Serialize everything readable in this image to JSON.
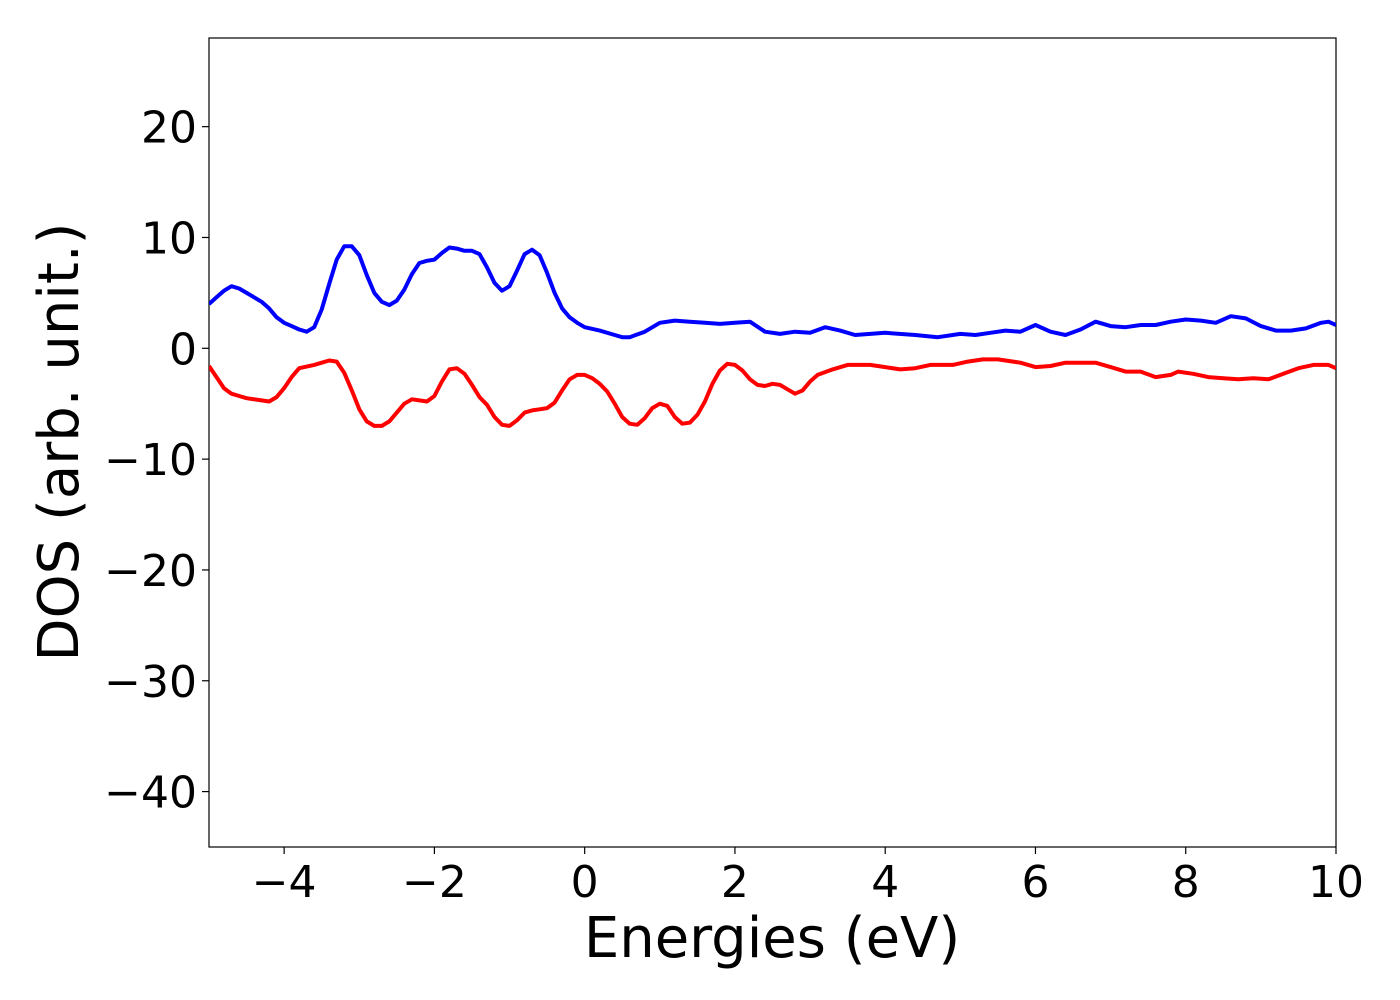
{
  "chart_data": {
    "type": "line",
    "xlabel": "Energies (eV)",
    "ylabel": "DOS (arb. unit.)",
    "xlim": [
      -5,
      10
    ],
    "ylim": [
      -45,
      28
    ],
    "xticks": [
      -4,
      -2,
      0,
      2,
      4,
      6,
      8,
      10
    ],
    "yticks": [
      20,
      10,
      0,
      -10,
      -20,
      -30,
      -40
    ],
    "grid": false,
    "series": [
      {
        "color": "#0000ff",
        "points": [
          [
            -5,
            4
          ],
          [
            -4.9,
            4.6
          ],
          [
            -4.8,
            5.2
          ],
          [
            -4.7,
            5.6
          ],
          [
            -4.6,
            5.4
          ],
          [
            -4.5,
            5
          ],
          [
            -4.4,
            4.6
          ],
          [
            -4.3,
            4.2
          ],
          [
            -4.2,
            3.6
          ],
          [
            -4.1,
            2.8
          ],
          [
            -4,
            2.3
          ],
          [
            -3.9,
            2
          ],
          [
            -3.8,
            1.7
          ],
          [
            -3.7,
            1.5
          ],
          [
            -3.6,
            1.9
          ],
          [
            -3.5,
            3.5
          ],
          [
            -3.4,
            5.8
          ],
          [
            -3.3,
            8
          ],
          [
            -3.2,
            9.2
          ],
          [
            -3.1,
            9.2
          ],
          [
            -3,
            8.4
          ],
          [
            -2.9,
            6.6
          ],
          [
            -2.8,
            5
          ],
          [
            -2.7,
            4.2
          ],
          [
            -2.6,
            3.9
          ],
          [
            -2.5,
            4.3
          ],
          [
            -2.4,
            5.3
          ],
          [
            -2.3,
            6.7
          ],
          [
            -2.2,
            7.7
          ],
          [
            -2.1,
            7.9
          ],
          [
            -2,
            8
          ],
          [
            -1.9,
            8.6
          ],
          [
            -1.8,
            9.1
          ],
          [
            -1.7,
            9
          ],
          [
            -1.6,
            8.8
          ],
          [
            -1.5,
            8.8
          ],
          [
            -1.4,
            8.5
          ],
          [
            -1.3,
            7.3
          ],
          [
            -1.2,
            5.9
          ],
          [
            -1.1,
            5.2
          ],
          [
            -1,
            5.6
          ],
          [
            -0.9,
            7
          ],
          [
            -0.8,
            8.5
          ],
          [
            -0.7,
            8.9
          ],
          [
            -0.6,
            8.4
          ],
          [
            -0.5,
            6.8
          ],
          [
            -0.4,
            5
          ],
          [
            -0.3,
            3.6
          ],
          [
            -0.2,
            2.8
          ],
          [
            -0.1,
            2.3
          ],
          [
            0,
            1.9
          ],
          [
            0.2,
            1.6
          ],
          [
            0.4,
            1.2
          ],
          [
            0.5,
            1
          ],
          [
            0.6,
            1
          ],
          [
            0.8,
            1.5
          ],
          [
            1,
            2.3
          ],
          [
            1.2,
            2.5
          ],
          [
            1.4,
            2.4
          ],
          [
            1.6,
            2.3
          ],
          [
            1.8,
            2.2
          ],
          [
            2,
            2.3
          ],
          [
            2.2,
            2.4
          ],
          [
            2.4,
            1.5
          ],
          [
            2.6,
            1.3
          ],
          [
            2.8,
            1.5
          ],
          [
            3,
            1.4
          ],
          [
            3.2,
            1.9
          ],
          [
            3.4,
            1.6
          ],
          [
            3.6,
            1.2
          ],
          [
            4,
            1.4
          ],
          [
            4.4,
            1.2
          ],
          [
            4.7,
            1
          ],
          [
            5,
            1.3
          ],
          [
            5.2,
            1.2
          ],
          [
            5.4,
            1.4
          ],
          [
            5.6,
            1.6
          ],
          [
            5.8,
            1.5
          ],
          [
            6,
            2.1
          ],
          [
            6.2,
            1.5
          ],
          [
            6.4,
            1.2
          ],
          [
            6.6,
            1.7
          ],
          [
            6.8,
            2.4
          ],
          [
            7,
            2
          ],
          [
            7.2,
            1.9
          ],
          [
            7.4,
            2.1
          ],
          [
            7.6,
            2.1
          ],
          [
            7.8,
            2.4
          ],
          [
            8,
            2.6
          ],
          [
            8.2,
            2.5
          ],
          [
            8.4,
            2.3
          ],
          [
            8.6,
            2.9
          ],
          [
            8.8,
            2.7
          ],
          [
            9,
            2
          ],
          [
            9.2,
            1.6
          ],
          [
            9.4,
            1.6
          ],
          [
            9.6,
            1.8
          ],
          [
            9.8,
            2.3
          ],
          [
            9.9,
            2.4
          ],
          [
            10,
            2.1
          ]
        ]
      },
      {
        "color": "#ff0000",
        "points": [
          [
            -5,
            -1.6
          ],
          [
            -4.9,
            -2.6
          ],
          [
            -4.8,
            -3.6
          ],
          [
            -4.7,
            -4.1
          ],
          [
            -4.6,
            -4.3
          ],
          [
            -4.5,
            -4.5
          ],
          [
            -4.3,
            -4.7
          ],
          [
            -4.2,
            -4.8
          ],
          [
            -4.1,
            -4.4
          ],
          [
            -4,
            -3.6
          ],
          [
            -3.9,
            -2.6
          ],
          [
            -3.8,
            -1.8
          ],
          [
            -3.6,
            -1.5
          ],
          [
            -3.5,
            -1.3
          ],
          [
            -3.4,
            -1.1
          ],
          [
            -3.3,
            -1.2
          ],
          [
            -3.2,
            -2.2
          ],
          [
            -3.1,
            -3.8
          ],
          [
            -3,
            -5.5
          ],
          [
            -2.9,
            -6.6
          ],
          [
            -2.8,
            -7
          ],
          [
            -2.7,
            -7
          ],
          [
            -2.6,
            -6.6
          ],
          [
            -2.5,
            -5.8
          ],
          [
            -2.4,
            -5
          ],
          [
            -2.3,
            -4.6
          ],
          [
            -2.2,
            -4.7
          ],
          [
            -2.1,
            -4.8
          ],
          [
            -2,
            -4.3
          ],
          [
            -1.9,
            -3
          ],
          [
            -1.8,
            -1.9
          ],
          [
            -1.7,
            -1.8
          ],
          [
            -1.6,
            -2.3
          ],
          [
            -1.5,
            -3.3
          ],
          [
            -1.4,
            -4.4
          ],
          [
            -1.3,
            -5.1
          ],
          [
            -1.2,
            -6.2
          ],
          [
            -1.1,
            -6.9
          ],
          [
            -1,
            -7
          ],
          [
            -0.9,
            -6.5
          ],
          [
            -0.8,
            -5.8
          ],
          [
            -0.7,
            -5.6
          ],
          [
            -0.6,
            -5.5
          ],
          [
            -0.5,
            -5.4
          ],
          [
            -0.4,
            -4.9
          ],
          [
            -0.3,
            -3.8
          ],
          [
            -0.2,
            -2.8
          ],
          [
            -0.1,
            -2.4
          ],
          [
            0,
            -2.4
          ],
          [
            0.1,
            -2.7
          ],
          [
            0.2,
            -3.2
          ],
          [
            0.3,
            -3.9
          ],
          [
            0.4,
            -5
          ],
          [
            0.5,
            -6.2
          ],
          [
            0.6,
            -6.8
          ],
          [
            0.7,
            -6.9
          ],
          [
            0.8,
            -6.3
          ],
          [
            0.9,
            -5.4
          ],
          [
            1,
            -5
          ],
          [
            1.1,
            -5.2
          ],
          [
            1.2,
            -6.2
          ],
          [
            1.3,
            -6.8
          ],
          [
            1.4,
            -6.7
          ],
          [
            1.5,
            -6
          ],
          [
            1.6,
            -4.8
          ],
          [
            1.7,
            -3.2
          ],
          [
            1.8,
            -2
          ],
          [
            1.9,
            -1.4
          ],
          [
            2,
            -1.5
          ],
          [
            2.1,
            -2
          ],
          [
            2.2,
            -2.8
          ],
          [
            2.3,
            -3.3
          ],
          [
            2.4,
            -3.4
          ],
          [
            2.5,
            -3.2
          ],
          [
            2.6,
            -3.3
          ],
          [
            2.7,
            -3.7
          ],
          [
            2.8,
            -4.1
          ],
          [
            2.9,
            -3.8
          ],
          [
            3,
            -3
          ],
          [
            3.1,
            -2.4
          ],
          [
            3.3,
            -1.9
          ],
          [
            3.5,
            -1.5
          ],
          [
            3.8,
            -1.5
          ],
          [
            4,
            -1.7
          ],
          [
            4.2,
            -1.9
          ],
          [
            4.4,
            -1.8
          ],
          [
            4.6,
            -1.5
          ],
          [
            4.9,
            -1.5
          ],
          [
            5.1,
            -1.2
          ],
          [
            5.3,
            -1
          ],
          [
            5.5,
            -1
          ],
          [
            5.8,
            -1.3
          ],
          [
            6,
            -1.7
          ],
          [
            6.2,
            -1.6
          ],
          [
            6.4,
            -1.3
          ],
          [
            6.8,
            -1.3
          ],
          [
            7,
            -1.7
          ],
          [
            7.2,
            -2.1
          ],
          [
            7.4,
            -2.1
          ],
          [
            7.6,
            -2.6
          ],
          [
            7.8,
            -2.4
          ],
          [
            7.9,
            -2.1
          ],
          [
            8.1,
            -2.3
          ],
          [
            8.3,
            -2.6
          ],
          [
            8.5,
            -2.7
          ],
          [
            8.7,
            -2.8
          ],
          [
            8.9,
            -2.7
          ],
          [
            9.1,
            -2.8
          ],
          [
            9.3,
            -2.3
          ],
          [
            9.5,
            -1.8
          ],
          [
            9.7,
            -1.5
          ],
          [
            9.9,
            -1.5
          ],
          [
            10,
            -1.8
          ]
        ]
      }
    ]
  }
}
